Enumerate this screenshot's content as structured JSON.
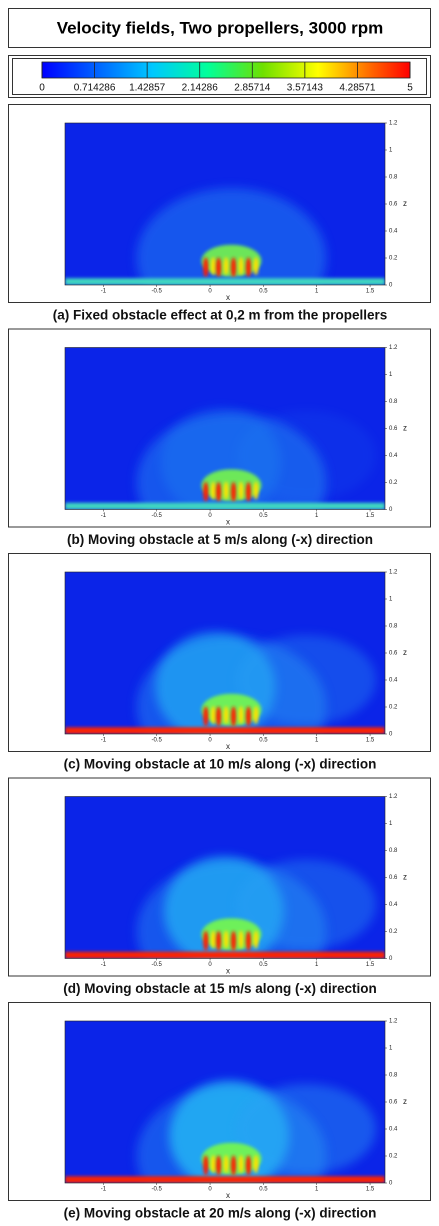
{
  "title": "Velocity fields, Two propellers, 3000 rpm",
  "colorbar": {
    "lim": [
      0,
      5
    ],
    "ticks": [
      0,
      0.714286,
      1.42857,
      2.14286,
      2.85714,
      3.57143,
      4.28571,
      5
    ]
  },
  "x_axis": {
    "label": "x",
    "lim": [
      -1.36,
      1.64
    ],
    "ticks": [
      -1,
      -0.5,
      0,
      0.5,
      1,
      1.5
    ]
  },
  "z_axis": {
    "label": "z",
    "lim": [
      0,
      1.2
    ],
    "ticks": [
      0,
      0.2,
      0.4,
      0.6,
      0.8,
      1,
      1.2
    ]
  },
  "panels": [
    {
      "caption": "(a) Fixed obstacle effect at 0,2 m from the propellers"
    },
    {
      "caption": "(b) Moving obstacle at 5 m/s along (-x) direction"
    },
    {
      "caption": "(c) Moving obstacle at 10 m/s along (-x) direction"
    },
    {
      "caption": "(d) Moving obstacle at 15 m/s along (-x) direction"
    },
    {
      "caption": "(e) Moving obstacle at 20 m/s along (-x) direction"
    }
  ]
}
